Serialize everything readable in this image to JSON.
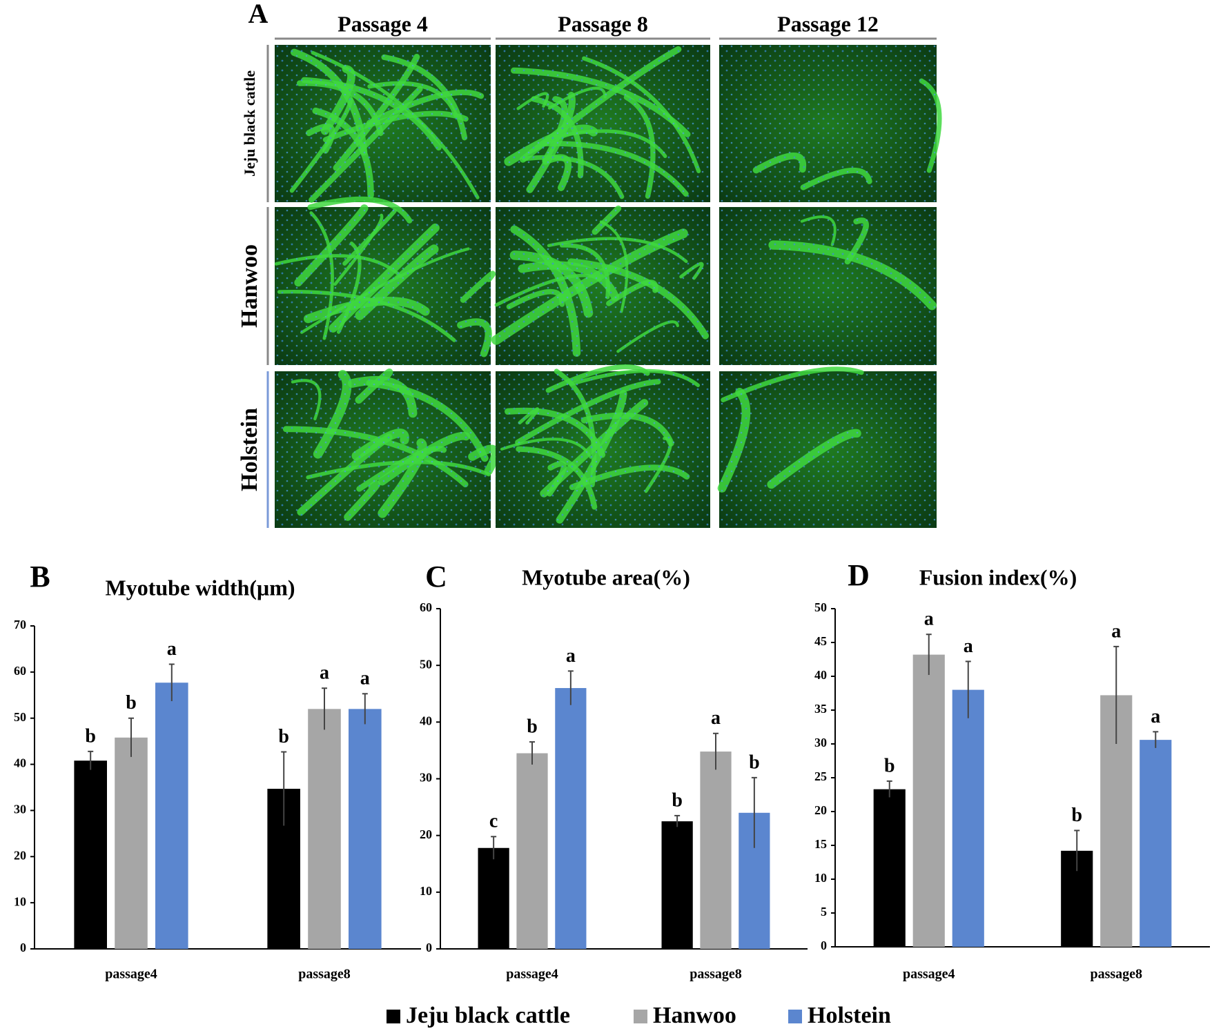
{
  "image_panel": {
    "label": "A",
    "columns": [
      "Passage 4",
      "Passage 8",
      "Passage 12"
    ],
    "rows": [
      "Jeju black cattle",
      "Hanwoo",
      "Holstein"
    ]
  },
  "chart_data": [
    {
      "type": "bar",
      "panel": "B",
      "title": "Myotube width(μm)",
      "categories": [
        "passage4",
        "passage8"
      ],
      "ylim": [
        0,
        70
      ],
      "yticks": [
        0,
        10,
        20,
        30,
        40,
        50,
        60,
        70
      ],
      "series": [
        {
          "name": "Jeju black cattle",
          "color": "#000000",
          "values": [
            40.8,
            34.7
          ],
          "errors": [
            2.0,
            8.0
          ],
          "letters": [
            "b",
            "b"
          ]
        },
        {
          "name": "Hanwoo",
          "color": "#a6a6a6",
          "values": [
            45.8,
            52.0
          ],
          "errors": [
            4.2,
            4.5
          ],
          "letters": [
            "b",
            "a"
          ]
        },
        {
          "name": "Holstein",
          "color": "#5b86cf",
          "values": [
            57.7,
            52.0
          ],
          "errors": [
            4.0,
            3.3
          ],
          "letters": [
            "a",
            "a"
          ]
        }
      ]
    },
    {
      "type": "bar",
      "panel": "C",
      "title": "Myotube area(%)",
      "categories": [
        "passage4",
        "passage8"
      ],
      "ylim": [
        0,
        60
      ],
      "yticks": [
        0,
        10,
        20,
        30,
        40,
        50,
        60
      ],
      "series": [
        {
          "color": "#000000",
          "values": [
            17.8,
            22.5
          ],
          "errors": [
            2.0,
            1.0
          ],
          "letters": [
            "c",
            "b"
          ]
        },
        {
          "color": "#a6a6a6",
          "values": [
            34.5,
            34.8
          ],
          "errors": [
            2.0,
            3.2
          ],
          "letters": [
            "b",
            "a"
          ]
        },
        {
          "color": "#5b86cf",
          "values": [
            46.0,
            24.0
          ],
          "errors": [
            3.0,
            6.2
          ],
          "letters": [
            "a",
            "b"
          ]
        }
      ]
    },
    {
      "type": "bar",
      "panel": "D",
      "title": "Fusion index(%)",
      "categories": [
        "passage4",
        "passage8"
      ],
      "ylim": [
        0,
        50
      ],
      "yticks": [
        0,
        5,
        10,
        15,
        20,
        25,
        30,
        35,
        40,
        45,
        50
      ],
      "series": [
        {
          "color": "#000000",
          "values": [
            23.3,
            14.2
          ],
          "errors": [
            1.2,
            3.0
          ],
          "letters": [
            "b",
            "b"
          ]
        },
        {
          "color": "#a6a6a6",
          "values": [
            43.2,
            37.2
          ],
          "errors": [
            3.0,
            7.2
          ],
          "letters": [
            "a",
            "a"
          ]
        },
        {
          "color": "#5b86cf",
          "values": [
            38.0,
            30.6
          ],
          "errors": [
            4.2,
            1.2
          ],
          "letters": [
            "a",
            "a"
          ]
        }
      ]
    }
  ]
}
